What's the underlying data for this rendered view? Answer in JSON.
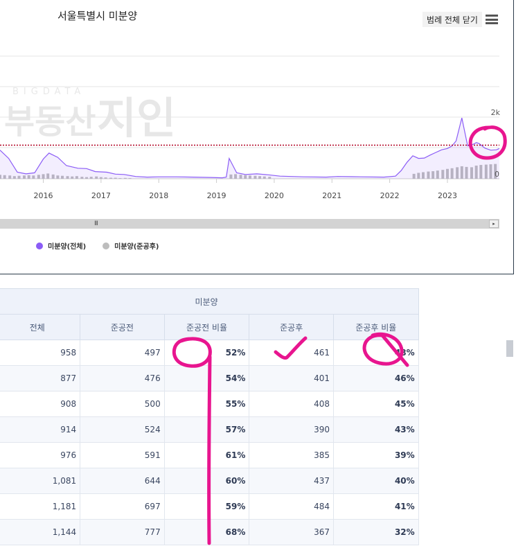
{
  "chart": {
    "title": "서울특별시 미분양",
    "legend_toggle_label": "범례 전체 닫기",
    "menu_icon": "hamburger-menu-icon",
    "watermark": {
      "top": "BIGDATA",
      "main": "부동산",
      "logo": "지인"
    },
    "y_tick_top": "2k",
    "y_tick_bottom": "0",
    "scroll_grip": "III",
    "scroll_right": "▸",
    "legend": [
      {
        "label": "미분양(전체)",
        "color": "#8b5cf6"
      },
      {
        "label": "미분양(준공후)",
        "color": "#bdbdbd"
      }
    ]
  },
  "chart_data": {
    "type": "line",
    "x_tick_labels": [
      "2016",
      "2017",
      "2018",
      "2019",
      "2020",
      "2021",
      "2022",
      "2023"
    ],
    "x_range": [
      2015.25,
      2023.9
    ],
    "y_range": [
      0,
      2000
    ],
    "reference_line_value": 1020,
    "series": [
      {
        "name": "미분양(전체)",
        "type": "area",
        "color": "#8b5cf6",
        "x": [
          2015.25,
          2015.4,
          2015.55,
          2015.7,
          2015.85,
          2016.0,
          2016.1,
          2016.25,
          2016.4,
          2016.6,
          2016.75,
          2016.9,
          2017.1,
          2017.25,
          2017.4,
          2017.6,
          2017.8,
          2018.0,
          2018.3,
          2018.6,
          2018.9,
          2019.1,
          2019.17,
          2019.22,
          2019.35,
          2019.5,
          2019.7,
          2019.9,
          2020.1,
          2020.5,
          2020.9,
          2021.1,
          2021.5,
          2021.9,
          2022.1,
          2022.2,
          2022.3,
          2022.4,
          2022.5,
          2022.6,
          2022.7,
          2022.8,
          2022.9,
          2023.0,
          2023.08,
          2023.15,
          2023.25,
          2023.35,
          2023.45,
          2023.5,
          2023.55,
          2023.65,
          2023.75,
          2023.85,
          2023.9
        ],
        "values": [
          870,
          620,
          200,
          150,
          180,
          600,
          780,
          650,
          400,
          320,
          310,
          220,
          200,
          140,
          130,
          70,
          50,
          60,
          60,
          50,
          40,
          30,
          50,
          620,
          180,
          130,
          150,
          120,
          80,
          60,
          50,
          70,
          60,
          50,
          80,
          250,
          500,
          700,
          620,
          630,
          720,
          800,
          880,
          920,
          1000,
          1150,
          1850,
          1000,
          1050,
          1100,
          1070,
          930,
          870,
          880,
          920
        ]
      },
      {
        "name": "미분양(준공후)",
        "type": "bar",
        "color": "#bdbdbd",
        "x": [
          2015.25,
          2015.33,
          2015.42,
          2015.5,
          2015.58,
          2015.67,
          2015.75,
          2015.83,
          2015.92,
          2016.0,
          2016.08,
          2016.17,
          2016.25,
          2016.33,
          2016.42,
          2016.5,
          2016.58,
          2016.67,
          2016.75,
          2016.83,
          2016.92,
          2017.0,
          2017.08,
          2017.17,
          2017.25,
          2017.33,
          2017.42,
          2017.5,
          2019.25,
          2019.33,
          2019.42,
          2019.5,
          2019.58,
          2019.67,
          2019.75,
          2019.83,
          2019.92,
          2022.42,
          2022.5,
          2022.58,
          2022.67,
          2022.75,
          2022.83,
          2022.92,
          2023.0,
          2023.08,
          2023.17,
          2023.25,
          2023.33,
          2023.42,
          2023.5,
          2023.58,
          2023.67,
          2023.75,
          2023.83
        ],
        "values": [
          120,
          110,
          100,
          80,
          90,
          100,
          110,
          100,
          120,
          140,
          160,
          130,
          100,
          90,
          80,
          70,
          80,
          60,
          50,
          60,
          70,
          50,
          40,
          30,
          30,
          20,
          25,
          20,
          130,
          140,
          120,
          110,
          100,
          90,
          80,
          70,
          60,
          150,
          180,
          200,
          220,
          230,
          250,
          270,
          300,
          320,
          350,
          380,
          360,
          350,
          400,
          420,
          430,
          440,
          450
        ]
      }
    ]
  },
  "table": {
    "group_header": "미분양",
    "columns": [
      "전체",
      "준공전",
      "준공전 비율",
      "준공후",
      "준공후 비율"
    ],
    "rows": [
      [
        "958",
        "497",
        "52%",
        "461",
        "48%"
      ],
      [
        "877",
        "476",
        "54%",
        "401",
        "46%"
      ],
      [
        "908",
        "500",
        "55%",
        "408",
        "45%"
      ],
      [
        "914",
        "524",
        "57%",
        "390",
        "43%"
      ],
      [
        "976",
        "591",
        "61%",
        "385",
        "39%"
      ],
      [
        "1,081",
        "644",
        "60%",
        "437",
        "40%"
      ],
      [
        "1,181",
        "697",
        "59%",
        "484",
        "41%"
      ],
      [
        "1,144",
        "777",
        "68%",
        "367",
        "32%"
      ]
    ]
  },
  "annotation_color": "#e8158f"
}
